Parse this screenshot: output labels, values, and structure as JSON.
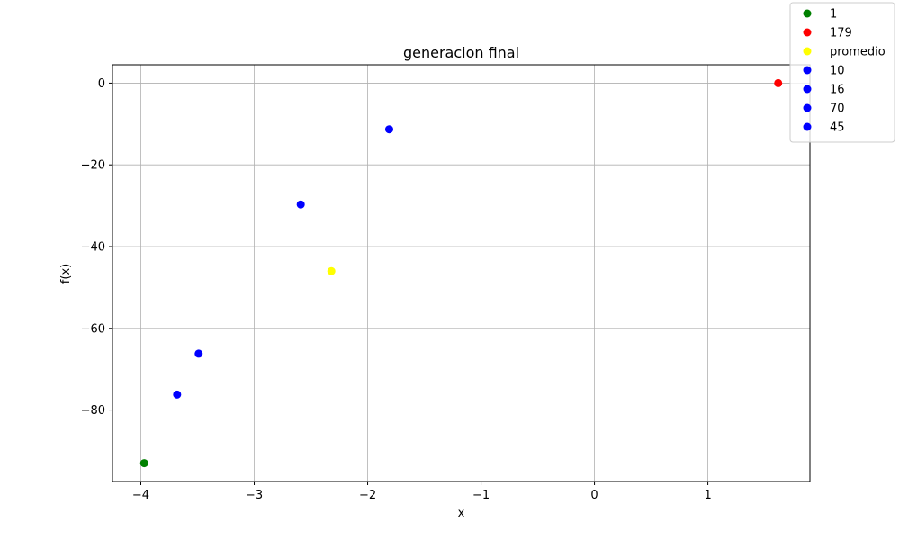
{
  "chart_data": {
    "type": "scatter",
    "title": "generacion final",
    "xlabel": "x",
    "ylabel": "f(x)",
    "xlim": [
      -4.25,
      1.9
    ],
    "ylim": [
      -97.5,
      4.5
    ],
    "xticks": [
      -4,
      -3,
      -2,
      -1,
      0,
      1
    ],
    "xtick_labels": [
      "−4",
      "−3",
      "−2",
      "−1",
      "0",
      "1"
    ],
    "yticks": [
      0,
      -20,
      -40,
      -60,
      -80
    ],
    "ytick_labels": [
      "0",
      "−20",
      "−40",
      "−60",
      "−80"
    ],
    "grid": true,
    "legend_position": "top-right",
    "series": [
      {
        "name": "1",
        "color": "#008000",
        "points": [
          [
            -3.97,
            -93.0
          ]
        ]
      },
      {
        "name": "179",
        "color": "#ff0000",
        "points": [
          [
            1.62,
            0.0
          ]
        ]
      },
      {
        "name": "promedio",
        "color": "#ffff00",
        "points": [
          [
            -2.32,
            -46.0
          ]
        ]
      },
      {
        "name": "10",
        "color": "#0000ff",
        "points": [
          [
            -3.68,
            -76.2
          ]
        ]
      },
      {
        "name": "16",
        "color": "#0000ff",
        "points": [
          [
            -3.49,
            -66.2
          ]
        ]
      },
      {
        "name": "70",
        "color": "#0000ff",
        "points": [
          [
            -1.81,
            -11.3
          ]
        ]
      },
      {
        "name": "45",
        "color": "#0000ff",
        "points": [
          [
            -2.59,
            -29.7
          ]
        ]
      }
    ]
  }
}
